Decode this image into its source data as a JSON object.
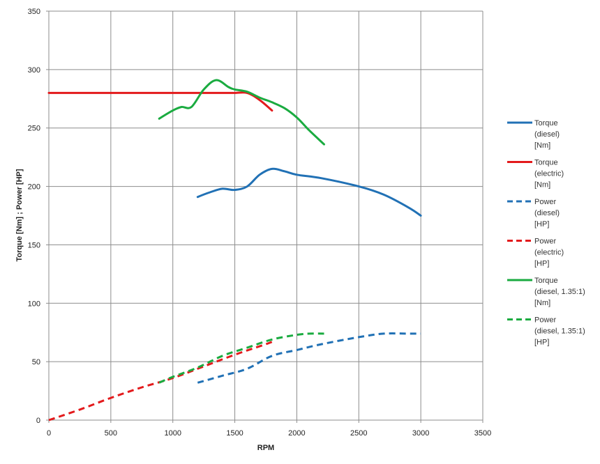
{
  "chart_data": {
    "type": "line",
    "title": "",
    "xlabel": "RPM",
    "ylabel": "Torque [Nm] ; Power [HP]",
    "xlim": [
      0,
      3500
    ],
    "ylim": [
      0,
      350
    ],
    "xticks": [
      0,
      500,
      1000,
      1500,
      2000,
      2500,
      3000,
      3500
    ],
    "yticks": [
      0,
      50,
      100,
      150,
      200,
      250,
      300,
      350
    ],
    "grid": true,
    "legend_position": "right",
    "series": [
      {
        "name": "Torque (diesel) [Nm]",
        "legend_lines": [
          "Torque",
          "(diesel)",
          "[Nm]"
        ],
        "color": "#2171b5",
        "dash": "solid",
        "x": [
          1200,
          1300,
          1400,
          1500,
          1600,
          1700,
          1800,
          1900,
          2000,
          2200,
          2500,
          2700,
          2900,
          3000
        ],
        "y": [
          191,
          195,
          198,
          197,
          200,
          210,
          215,
          213,
          210,
          207,
          200,
          193,
          182,
          175
        ]
      },
      {
        "name": "Torque (electric) [Nm]",
        "legend_lines": [
          "Torque",
          "(electric)",
          "[Nm]"
        ],
        "color": "#e31a1c",
        "dash": "solid",
        "x": [
          0,
          500,
          1000,
          1400,
          1500,
          1600,
          1700,
          1800
        ],
        "y": [
          280,
          280,
          280,
          280,
          280,
          280,
          274,
          265
        ]
      },
      {
        "name": "Power (diesel) [HP]",
        "legend_lines": [
          "Power",
          "(diesel)",
          "[HP]"
        ],
        "color": "#2171b5",
        "dash": "dashed",
        "x": [
          1200,
          1400,
          1600,
          1800,
          2000,
          2200,
          2500,
          2700,
          2900,
          3000
        ],
        "y": [
          32,
          38,
          44,
          55,
          60,
          65,
          71,
          74,
          74,
          74
        ]
      },
      {
        "name": "Power (electric) [HP]",
        "legend_lines": [
          "Power",
          "(electric)",
          "[HP]"
        ],
        "color": "#e31a1c",
        "dash": "dashed",
        "x": [
          0,
          250,
          500,
          750,
          1000,
          1250,
          1500,
          1750,
          1800
        ],
        "y": [
          0,
          9,
          19,
          28,
          36,
          46,
          56,
          65,
          67
        ]
      },
      {
        "name": "Torque (diesel, 1.35:1) [Nm]",
        "legend_lines": [
          "Torque",
          "(diesel, 1.35:1)",
          "[Nm]"
        ],
        "color": "#1aab40",
        "dash": "solid",
        "x": [
          890,
          1000,
          1070,
          1150,
          1250,
          1350,
          1450,
          1500,
          1600,
          1700,
          1800,
          1900,
          2000,
          2100,
          2220
        ],
        "y": [
          258,
          265,
          268,
          268,
          283,
          291,
          285,
          283,
          281,
          276,
          272,
          267,
          259,
          248,
          236
        ]
      },
      {
        "name": "Power (diesel, 1.35:1) [HP]",
        "legend_lines": [
          "Power",
          "(diesel, 1.35:1)",
          "[HP]"
        ],
        "color": "#1aab40",
        "dash": "dashed",
        "x": [
          890,
          1000,
          1200,
          1400,
          1600,
          1800,
          2000,
          2100,
          2220
        ],
        "y": [
          32,
          37,
          45,
          55,
          62,
          69,
          73,
          74,
          74
        ]
      }
    ]
  }
}
